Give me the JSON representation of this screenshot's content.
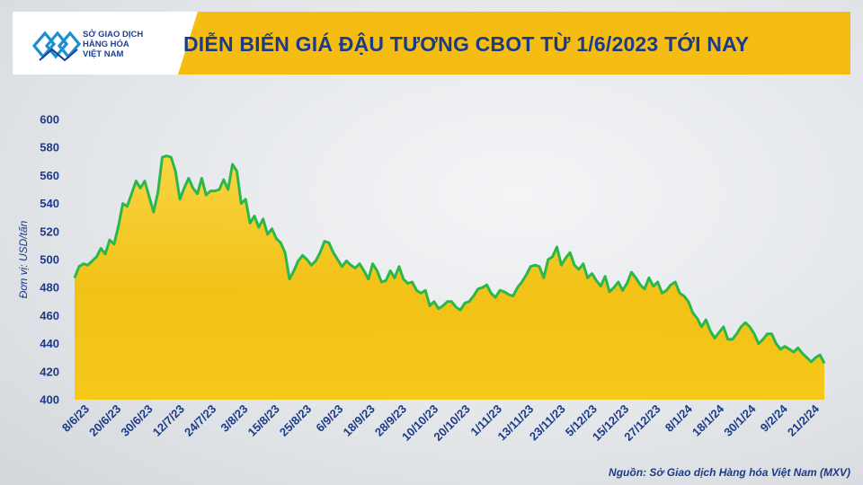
{
  "header": {
    "title": "DIỄN BIẾN GIÁ ĐẬU TƯƠNG CBOT TỪ 1/6/2023 TỚI NAY",
    "logo_lines": [
      "SỞ GIAO DỊCH",
      "HÀNG HÓA",
      "VIỆT NAM"
    ]
  },
  "footer": {
    "source": "Nguồn: Sở Giao dịch Hàng hóa Việt Nam (MXV)"
  },
  "colors": {
    "line": "#2bb84a",
    "fill": "#f7c615",
    "header": "#f5bd12",
    "text": "#1c3a8a"
  },
  "chart_data": {
    "type": "area",
    "title": "DIỄN BIẾN GIÁ ĐẬU TƯƠNG CBOT TỪ 1/6/2023 TỚI NAY",
    "ylabel": "Đơn vị: USD/tấn",
    "xlabel": "",
    "ylim": [
      400,
      600
    ],
    "yticks": [
      400,
      420,
      440,
      460,
      480,
      500,
      520,
      540,
      560,
      580,
      600
    ],
    "grid": false,
    "xticks": [
      "8/6/23",
      "20/6/23",
      "30/6/23",
      "12/7/23",
      "24/7/23",
      "3/8/23",
      "15/8/23",
      "25/8/23",
      "6/9/23",
      "18/9/23",
      "28/9/23",
      "10/10/23",
      "20/10/23",
      "1/11/23",
      "13/11/23",
      "23/11/23",
      "5/12/23",
      "15/12/23",
      "27/12/23",
      "8/1/24",
      "18/1/24",
      "30/1/24",
      "9/2/24",
      "21/2/24"
    ],
    "series": [
      {
        "values": [
          487,
          495,
          497,
          496,
          499,
          502,
          508,
          504,
          514,
          511,
          524,
          540,
          538,
          547,
          556,
          551,
          556,
          545,
          534,
          548,
          573,
          574,
          573,
          563,
          543,
          551,
          558,
          551,
          547,
          558,
          546,
          549,
          549,
          550,
          557,
          550,
          568,
          563,
          540,
          543,
          526,
          531,
          523,
          529,
          518,
          522,
          515,
          512,
          505,
          486,
          492,
          499,
          503,
          500,
          496,
          499,
          505,
          513,
          512,
          505,
          500,
          495,
          499,
          496,
          494,
          497,
          492,
          486,
          497,
          492,
          484,
          485,
          492,
          487,
          495,
          486,
          483,
          484,
          478,
          476,
          478,
          467,
          470,
          465,
          467,
          470,
          470,
          466,
          464,
          469,
          470,
          474,
          479,
          480,
          482,
          476,
          473,
          478,
          477,
          475,
          474,
          480,
          484,
          489,
          495,
          496,
          495,
          487,
          500,
          502,
          509,
          496,
          501,
          505,
          496,
          493,
          497,
          487,
          490,
          485,
          481,
          488,
          477,
          480,
          484,
          478,
          483,
          491,
          487,
          482,
          479,
          487,
          481,
          484,
          476,
          478,
          482,
          484,
          476,
          474,
          470,
          462,
          458,
          452,
          457,
          449,
          444,
          448,
          452,
          443,
          443,
          447,
          452,
          455,
          452,
          447,
          440,
          443,
          447,
          447,
          440,
          436,
          438,
          436,
          434,
          437,
          433,
          430,
          427,
          430,
          432,
          426
        ]
      }
    ]
  }
}
